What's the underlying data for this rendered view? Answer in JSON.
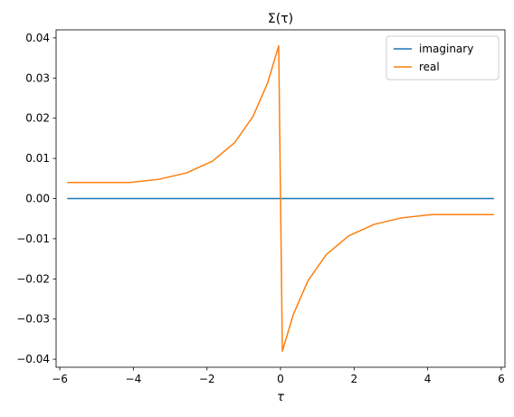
{
  "chart_data": {
    "type": "line",
    "title": "Σ(τ)",
    "xlabel": "τ",
    "ylabel": "",
    "xlim": [
      -6.1,
      6.1
    ],
    "ylim": [
      -0.042,
      0.042
    ],
    "x_ticks": [
      -6,
      -4,
      -2,
      0,
      2,
      4,
      6
    ],
    "x_tick_labels": [
      "−6",
      "−4",
      "−2",
      "0",
      "2",
      "4",
      "6"
    ],
    "y_ticks": [
      -0.04,
      -0.03,
      -0.02,
      -0.01,
      0.0,
      0.01,
      0.02,
      0.03,
      0.04
    ],
    "y_tick_labels": [
      "−0.04",
      "−0.03",
      "−0.02",
      "−0.01",
      "0.00",
      "0.01",
      "0.02",
      "0.03",
      "0.04"
    ],
    "grid": false,
    "legend": "top-right",
    "series": [
      {
        "name": "imaginary",
        "color": "#1f77b4",
        "x": [
          -5.8,
          5.8
        ],
        "y": [
          0.0,
          0.0
        ]
      },
      {
        "name": "real",
        "color": "#ff7f0e",
        "x": [
          -5.8,
          -4.1,
          -3.3,
          -2.55,
          -1.85,
          -1.25,
          -0.75,
          -0.35,
          -0.05,
          0.0,
          0.05,
          0.35,
          0.75,
          1.25,
          1.85,
          2.55,
          3.3,
          4.1,
          5.8
        ],
        "y": [
          0.004,
          0.004,
          0.0048,
          0.0064,
          0.0093,
          0.0139,
          0.0204,
          0.0288,
          0.038,
          0.0,
          -0.038,
          -0.0288,
          -0.0204,
          -0.0139,
          -0.0093,
          -0.0064,
          -0.0048,
          -0.004,
          -0.004
        ]
      }
    ]
  }
}
